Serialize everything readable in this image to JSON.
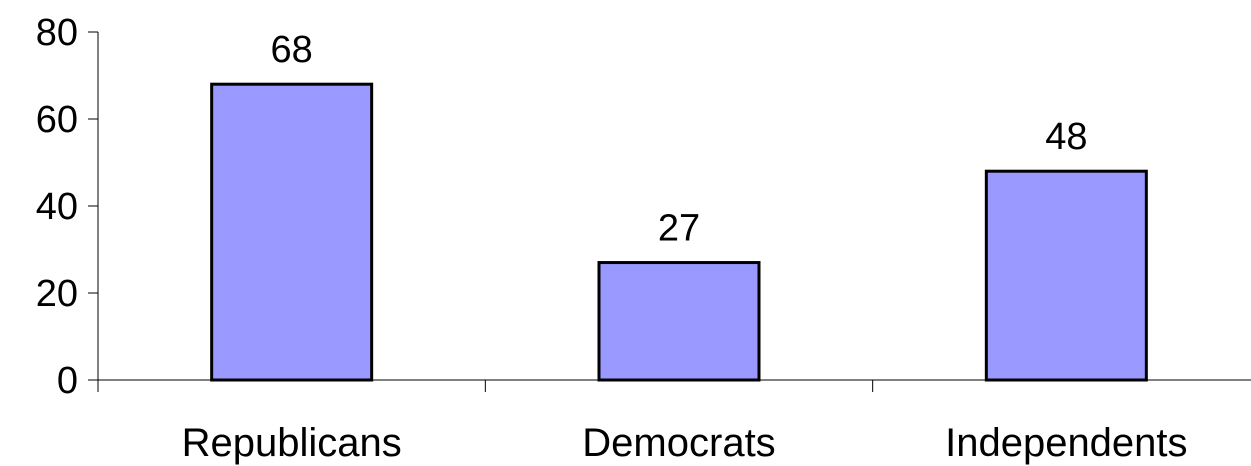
{
  "chart_data": {
    "type": "bar",
    "categories": [
      "Republicans",
      "Democrats",
      "Independents"
    ],
    "values": [
      68,
      27,
      48
    ],
    "ylim": [
      0,
      80
    ],
    "yticks": [
      0,
      20,
      40,
      60,
      80
    ],
    "grid": false,
    "legend": "none",
    "data_labels": true,
    "colors": {
      "bar_fill": "#9999ff",
      "bar_stroke": "#000000",
      "axis": "#000000"
    }
  }
}
